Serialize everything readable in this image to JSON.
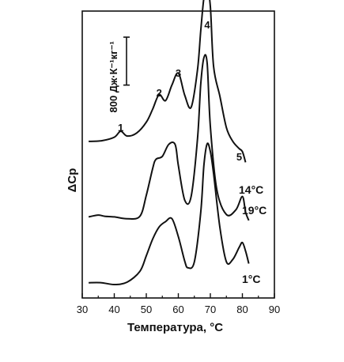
{
  "chart_data": {
    "type": "line",
    "xlabel": "Температура, °C",
    "ylabel": "ΔCp",
    "xlim": [
      30,
      90
    ],
    "xticks": [
      "30",
      "40",
      "50",
      "60",
      "70",
      "80",
      "90"
    ],
    "scale_bar": {
      "label": "800 Дж·К⁻¹кг⁻¹",
      "value": 800
    },
    "peak_labels": [
      {
        "label": "1",
        "x": 42
      },
      {
        "label": "2",
        "x": 54
      },
      {
        "label": "3",
        "x": 60
      },
      {
        "label": "4",
        "x": 69
      },
      {
        "label": "5",
        "x": 79
      }
    ],
    "series": [
      {
        "name": "14°C",
        "x": [
          32,
          36,
          40,
          42,
          44,
          47,
          50,
          52,
          54,
          56,
          58,
          60,
          62,
          64,
          66,
          67,
          68,
          69,
          70,
          71,
          73,
          75,
          77,
          79,
          80,
          81
        ],
        "y": [
          450,
          460,
          520,
          620,
          540,
          590,
          770,
          990,
          1230,
          1130,
          1390,
          1590,
          1220,
          1020,
          1650,
          2290,
          2850,
          3020,
          2700,
          1700,
          1200,
          680,
          450,
          330,
          280,
          100
        ]
      },
      {
        "name": "19°C",
        "x": [
          32,
          35,
          37,
          40,
          44,
          48,
          50,
          52,
          53,
          55,
          57,
          59,
          60,
          62,
          64,
          66,
          67,
          68,
          69,
          70,
          72,
          75,
          78,
          80,
          81,
          82
        ],
        "y": [
          140,
          170,
          150,
          140,
          110,
          150,
          500,
          950,
          1100,
          1150,
          1350,
          1350,
          1000,
          420,
          480,
          1450,
          2350,
          2800,
          2700,
          1650,
          600,
          180,
          260,
          480,
          220,
          80
        ]
      },
      {
        "name": "1°C",
        "x": [
          32,
          36,
          40,
          44,
          48,
          50,
          52,
          54,
          56,
          58,
          60,
          62,
          63,
          65,
          67,
          68,
          69,
          70,
          71,
          73,
          75,
          77,
          79,
          80,
          81,
          82
        ],
        "y": [
          30,
          30,
          0,
          40,
          220,
          480,
          760,
          960,
          1050,
          1100,
          800,
          390,
          280,
          380,
          1200,
          2000,
          2350,
          2220,
          1850,
          950,
          380,
          420,
          620,
          700,
          560,
          350
        ]
      }
    ]
  }
}
